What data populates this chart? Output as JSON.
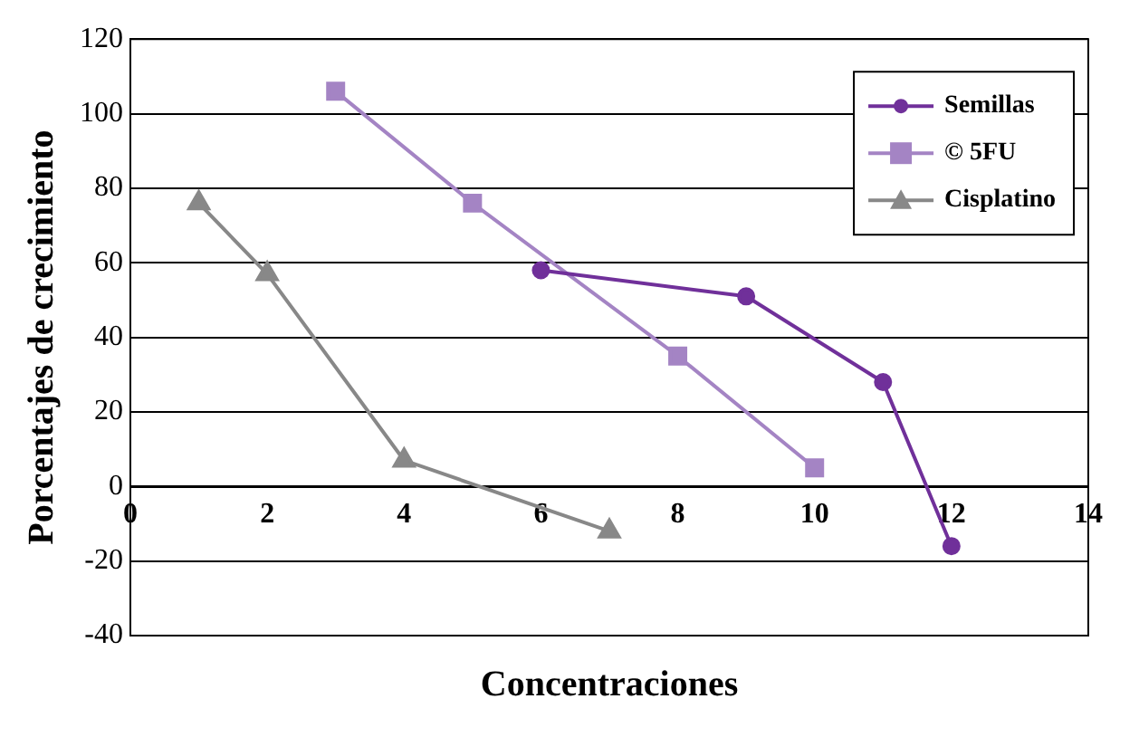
{
  "chart_data": {
    "type": "line",
    "xlabel": "Concentraciones",
    "ylabel": "Porcentajes de crecimiento",
    "xlim": [
      0,
      14
    ],
    "xticks": [
      0,
      2,
      4,
      6,
      8,
      10,
      12,
      14
    ],
    "ylim": [
      -40,
      120
    ],
    "yticks": [
      -40,
      -20,
      0,
      20,
      40,
      60,
      80,
      100,
      120
    ],
    "grid": "y",
    "legend": "top right",
    "series": [
      {
        "name": "Semillas",
        "color": "#70309a",
        "marker": "circle",
        "x": [
          6,
          9,
          11,
          12
        ],
        "values": [
          58,
          51,
          28,
          -16
        ]
      },
      {
        "name": "© 5FU",
        "color": "#a484c4",
        "marker": "square",
        "x": [
          3,
          5,
          8,
          10
        ],
        "values": [
          106,
          76,
          35,
          5
        ]
      },
      {
        "name": "Cisplatino",
        "color": "#888888",
        "marker": "triangle",
        "x": [
          1,
          2,
          4,
          7
        ],
        "values": [
          76,
          57,
          7,
          -12
        ]
      }
    ]
  }
}
